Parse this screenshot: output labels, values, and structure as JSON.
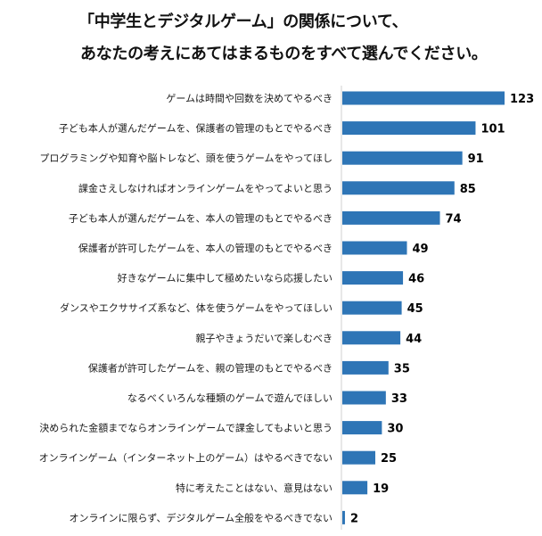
{
  "title": {
    "line1": "「中学生とデジタルゲーム」の関係について、",
    "line2": "あなたの考えにあてはまるものをすべて選んでください。"
  },
  "colors": {
    "bar": "#2e75b6",
    "axis": "#d0d0d0"
  },
  "chart_data": {
    "type": "bar",
    "orientation": "horizontal",
    "title": "「中学生とデジタルゲーム」の関係について、あなたの考えにあてはまるものをすべて選んでください。",
    "categories": [
      "ゲームは時間や回数を決めてやるべき",
      "子ども本人が選んだゲームを、保護者の管理のもとでやるべき",
      "プログラミングや知育や脳トレなど、頭を使うゲームをやってほし",
      "課金さえしなければオンラインゲームをやってよいと思う",
      "子ども本人が選んだゲームを、本人の管理のもとでやるべき",
      "保護者が許可したゲームを、本人の管理のもとでやるべき",
      "好きなゲームに集中して極めたいなら応援したい",
      "ダンスやエクササイズ系など、体を使うゲームをやってほしい",
      "親子やきょうだいで楽しむべき",
      "保護者が許可したゲームを、親の管理のもとでやるべき",
      "なるべくいろんな種類のゲームで遊んでほしい",
      "決められた金額までならオンラインゲームで課金してもよいと思う",
      "オンラインゲーム（インターネット上のゲーム）はやるべきでない",
      "特に考えたことはない、意見はない",
      "オンラインに限らず、デジタルゲーム全般をやるべきでない"
    ],
    "values": [
      123,
      101,
      91,
      85,
      74,
      49,
      46,
      45,
      44,
      35,
      33,
      30,
      25,
      19,
      2
    ],
    "xlim": [
      0,
      123
    ],
    "grid": false,
    "data_labels": true
  }
}
